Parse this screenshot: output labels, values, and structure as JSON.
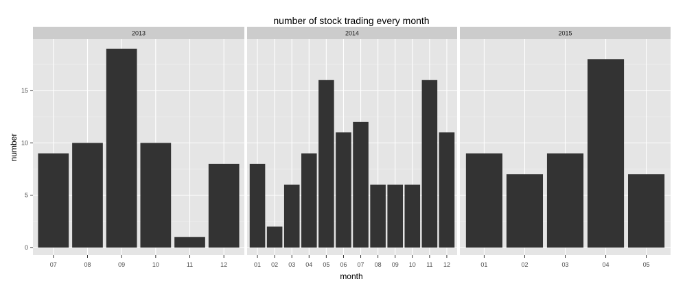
{
  "chart_data": {
    "type": "bar",
    "title": "number of stock trading every month",
    "xlabel": "month",
    "ylabel": "number",
    "ylim": [
      0,
      20
    ],
    "yticks": [
      0,
      5,
      10,
      15
    ],
    "grid": true,
    "legend": "none",
    "colors": {
      "bar": "#333333",
      "panel_bg": "#e5e5e5",
      "strip_bg": "#cccccc",
      "grid_major": "#ffffff",
      "grid_minor": "#f2f2f2"
    },
    "facets": [
      {
        "label": "2013",
        "categories": [
          "07",
          "08",
          "09",
          "10",
          "11",
          "12"
        ],
        "values": [
          9,
          10,
          19,
          10,
          1,
          8
        ]
      },
      {
        "label": "2014",
        "categories": [
          "01",
          "02",
          "03",
          "04",
          "05",
          "06",
          "07",
          "08",
          "09",
          "10",
          "11",
          "12"
        ],
        "values": [
          8,
          2,
          6,
          9,
          16,
          11,
          12,
          6,
          6,
          6,
          16,
          11
        ]
      },
      {
        "label": "2015",
        "categories": [
          "01",
          "02",
          "03",
          "04",
          "05"
        ],
        "values": [
          9,
          7,
          9,
          18,
          7
        ]
      }
    ]
  }
}
